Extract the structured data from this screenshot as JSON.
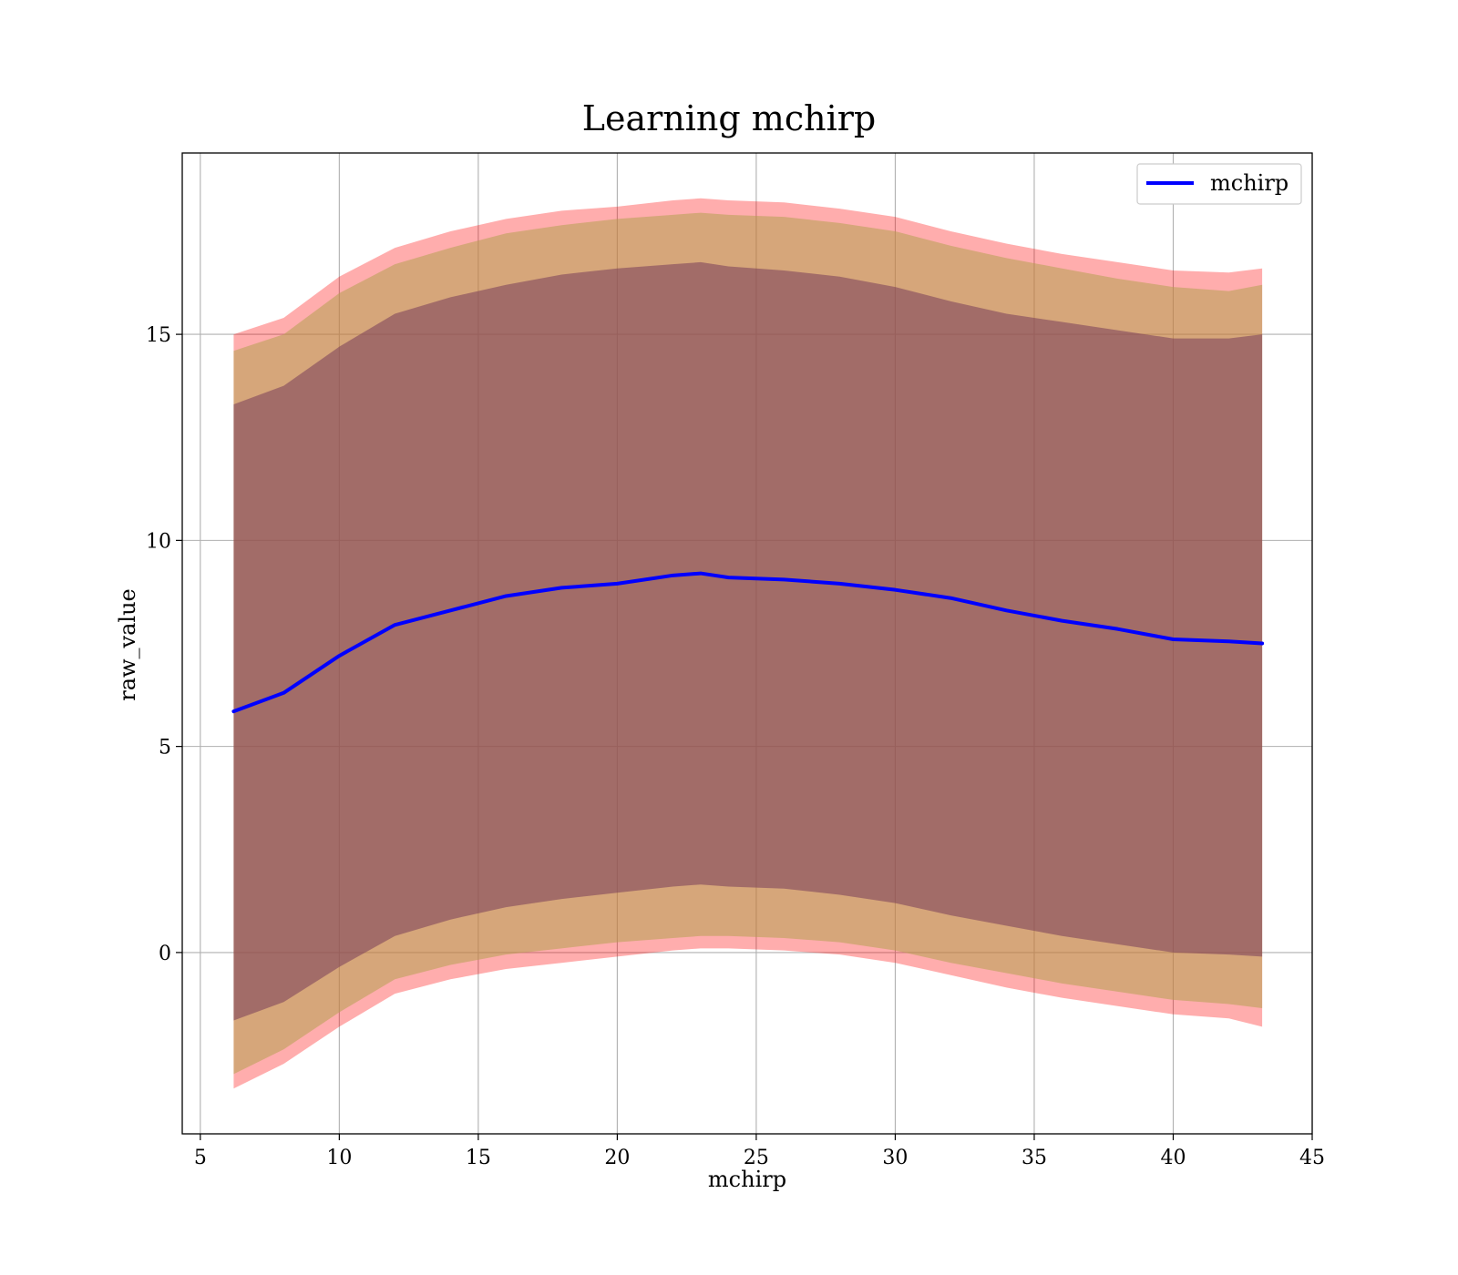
{
  "chart_data": {
    "type": "line",
    "title": "Learning mchirp",
    "xlabel": "mchirp",
    "ylabel": "raw_value",
    "xlim": [
      4.35,
      45
    ],
    "ylim": [
      -4.4,
      19.4
    ],
    "xticks": [
      5,
      10,
      15,
      20,
      25,
      30,
      35,
      40,
      45
    ],
    "yticks": [
      0,
      5,
      10,
      15
    ],
    "grid": true,
    "legend_position": "top-right",
    "colors": {
      "line": "#0000ff",
      "outer_band": "#ff0000",
      "middle_band": "#b4a050",
      "inner_band": "#783c5a",
      "grid": "#b0b0b0"
    },
    "x": [
      6.2,
      8,
      10,
      12,
      14,
      16,
      18,
      20,
      22,
      23,
      24,
      26,
      28,
      30,
      32,
      34,
      36,
      38,
      40,
      42,
      43.2
    ],
    "series": [
      {
        "name": "mchirp",
        "values": [
          5.85,
          6.3,
          7.2,
          7.95,
          8.3,
          8.65,
          8.85,
          8.95,
          9.15,
          9.2,
          9.1,
          9.05,
          8.95,
          8.8,
          8.6,
          8.3,
          8.05,
          7.85,
          7.6,
          7.55,
          7.5
        ]
      }
    ],
    "bands": [
      {
        "level": "outer",
        "upper": [
          15.0,
          15.4,
          16.4,
          17.1,
          17.5,
          17.8,
          18.0,
          18.1,
          18.25,
          18.3,
          18.25,
          18.2,
          18.05,
          17.85,
          17.5,
          17.2,
          16.95,
          16.75,
          16.55,
          16.5,
          16.6
        ],
        "lower": [
          -3.3,
          -2.7,
          -1.8,
          -1.0,
          -0.65,
          -0.4,
          -0.25,
          -0.1,
          0.05,
          0.1,
          0.1,
          0.05,
          -0.05,
          -0.25,
          -0.55,
          -0.85,
          -1.1,
          -1.3,
          -1.5,
          -1.6,
          -1.8
        ]
      },
      {
        "level": "middle",
        "upper": [
          14.6,
          15.0,
          16.0,
          16.7,
          17.1,
          17.45,
          17.65,
          17.8,
          17.9,
          17.95,
          17.9,
          17.85,
          17.7,
          17.5,
          17.15,
          16.85,
          16.6,
          16.35,
          16.15,
          16.05,
          16.2
        ],
        "lower": [
          -2.95,
          -2.35,
          -1.45,
          -0.65,
          -0.3,
          -0.05,
          0.1,
          0.25,
          0.35,
          0.4,
          0.4,
          0.35,
          0.25,
          0.05,
          -0.25,
          -0.5,
          -0.75,
          -0.95,
          -1.15,
          -1.25,
          -1.35
        ]
      },
      {
        "level": "inner",
        "upper": [
          13.3,
          13.75,
          14.7,
          15.5,
          15.9,
          16.2,
          16.45,
          16.6,
          16.7,
          16.75,
          16.65,
          16.55,
          16.4,
          16.15,
          15.8,
          15.5,
          15.3,
          15.1,
          14.9,
          14.9,
          15.0
        ],
        "lower": [
          -1.65,
          -1.2,
          -0.35,
          0.4,
          0.8,
          1.1,
          1.3,
          1.45,
          1.6,
          1.65,
          1.6,
          1.55,
          1.4,
          1.2,
          0.9,
          0.65,
          0.4,
          0.2,
          0.0,
          -0.05,
          -0.1
        ]
      }
    ]
  }
}
